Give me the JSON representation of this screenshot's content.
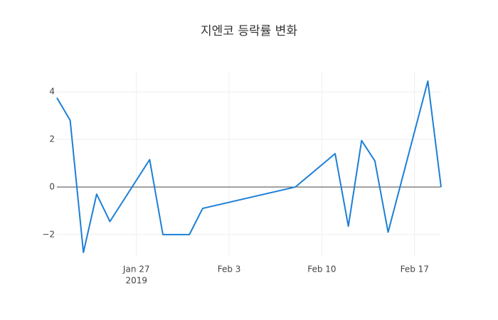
{
  "chart_data": {
    "type": "line",
    "title": "지엔코 등락률 변화",
    "x": [
      "2019-01-21",
      "2019-01-22",
      "2019-01-23",
      "2019-01-24",
      "2019-01-25",
      "2019-01-28",
      "2019-01-29",
      "2019-01-31",
      "2019-02-01",
      "2019-02-08",
      "2019-02-11",
      "2019-02-12",
      "2019-02-13",
      "2019-02-14",
      "2019-02-15",
      "2019-02-18",
      "2019-02-19"
    ],
    "series": [
      {
        "name": "등락률",
        "color": "#1c7fd6",
        "values": [
          3.75,
          2.8,
          -2.75,
          -0.3,
          -1.45,
          1.15,
          -2.0,
          -2.0,
          -0.9,
          0.0,
          1.4,
          -1.65,
          1.95,
          1.1,
          -1.9,
          4.45,
          0.0
        ]
      }
    ],
    "xlim": [
      "2019-01-21",
      "2019-02-19"
    ],
    "xticks": [
      {
        "value": "2019-01-27",
        "label": "Jan 27"
      },
      {
        "value": "2019-02-03",
        "label": "Feb 3"
      },
      {
        "value": "2019-02-10",
        "label": "Feb 10"
      },
      {
        "value": "2019-02-17",
        "label": "Feb 17"
      }
    ],
    "xtick_year": {
      "value": "2019-01-27",
      "label": "2019"
    },
    "ylim": [
      -2.9,
      4.87
    ],
    "yticks": [
      {
        "value": -2,
        "label": "−2"
      },
      0,
      2,
      4
    ],
    "grid": true,
    "zero_line": true
  }
}
